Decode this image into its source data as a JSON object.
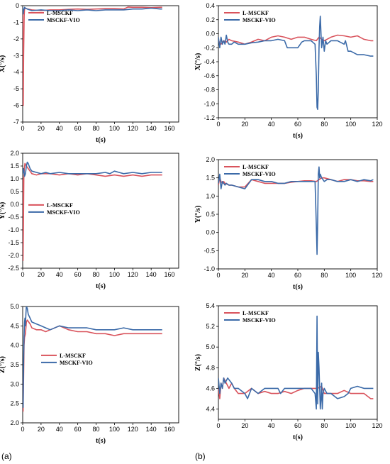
{
  "figure": {
    "label_a": "(a)",
    "label_b": "(b)"
  },
  "colors": {
    "l_msckf": "#d9535c",
    "msckf_vio": "#3b6aa8"
  },
  "chart_data": [
    {
      "type": "line",
      "panel": "a1",
      "xlabel": "t(s)",
      "ylabel": "X(°/s)",
      "xlim": [
        0,
        170
      ],
      "ylim": [
        -7,
        0
      ],
      "xticks": [
        0,
        20,
        40,
        60,
        80,
        100,
        120,
        140,
        160
      ],
      "yticks": [
        -7,
        -6,
        -5,
        -4,
        -3,
        -2,
        -1,
        0
      ],
      "legend": "top-left",
      "series": [
        {
          "name": "L-MSCKF",
          "color": "#d9535c",
          "x": [
            0,
            0.3,
            0.6,
            1,
            1.6,
            2,
            3,
            5,
            10,
            20,
            30,
            40,
            50,
            60,
            70,
            80,
            90,
            100,
            110,
            115,
            120,
            130,
            140,
            150,
            152
          ],
          "y": [
            -0.2,
            -4.0,
            -6.0,
            -3.0,
            -0.6,
            -0.2,
            -0.15,
            -0.2,
            -0.25,
            -0.3,
            -0.25,
            -0.25,
            -0.22,
            -0.2,
            -0.22,
            -0.2,
            -0.18,
            -0.18,
            -0.2,
            -0.08,
            -0.1,
            -0.1,
            -0.12,
            -0.1,
            -0.1
          ]
        },
        {
          "name": "MSCKF-VIO",
          "color": "#3b6aa8",
          "x": [
            0,
            0.5,
            1,
            2,
            3,
            5,
            10,
            20,
            30,
            40,
            50,
            60,
            70,
            80,
            90,
            100,
            110,
            120,
            130,
            140,
            150,
            152
          ],
          "y": [
            -0.1,
            -0.5,
            -0.3,
            -0.1,
            -0.15,
            -0.2,
            -0.3,
            -0.25,
            -0.3,
            -0.3,
            -0.25,
            -0.3,
            -0.25,
            -0.3,
            -0.25,
            -0.25,
            -0.25,
            -0.2,
            -0.2,
            -0.15,
            -0.2,
            -0.2
          ]
        }
      ]
    },
    {
      "type": "line",
      "panel": "a2",
      "xlabel": "t(s)",
      "ylabel": "Y(°/s)",
      "xlim": [
        0,
        170
      ],
      "ylim": [
        -2.5,
        2.0
      ],
      "xticks": [
        0,
        20,
        40,
        60,
        80,
        100,
        120,
        140,
        160
      ],
      "yticks": [
        -2.5,
        -2.0,
        -1.5,
        -1.0,
        -0.5,
        0.0,
        0.5,
        1.0,
        1.5,
        2.0
      ],
      "legend": "middle-left",
      "series": [
        {
          "name": "L-MSCKF",
          "color": "#d9535c",
          "x": [
            0,
            0.4,
            0.8,
            1.2,
            1.8,
            2.5,
            4,
            6,
            8,
            10,
            15,
            20,
            30,
            40,
            50,
            60,
            70,
            80,
            90,
            100,
            110,
            120,
            130,
            140,
            150,
            152
          ],
          "y": [
            1.0,
            -2.2,
            -1.0,
            1.0,
            1.4,
            1.6,
            1.5,
            1.4,
            1.3,
            1.2,
            1.15,
            1.2,
            1.2,
            1.15,
            1.2,
            1.15,
            1.2,
            1.15,
            1.1,
            1.15,
            1.1,
            1.15,
            1.1,
            1.15,
            1.15,
            1.15
          ]
        },
        {
          "name": "MSCKF-VIO",
          "color": "#3b6aa8",
          "x": [
            0,
            1,
            2,
            3,
            4,
            5,
            6,
            8,
            10,
            15,
            20,
            25,
            30,
            40,
            50,
            60,
            70,
            80,
            90,
            95,
            100,
            105,
            110,
            120,
            130,
            140,
            150,
            152
          ],
          "y": [
            1.2,
            1.4,
            1.1,
            1.2,
            1.5,
            1.65,
            1.6,
            1.4,
            1.3,
            1.25,
            1.2,
            1.25,
            1.2,
            1.25,
            1.2,
            1.2,
            1.2,
            1.2,
            1.25,
            1.2,
            1.3,
            1.25,
            1.2,
            1.25,
            1.2,
            1.25,
            1.25,
            1.25
          ]
        }
      ]
    },
    {
      "type": "line",
      "panel": "a3",
      "xlabel": "t(s)",
      "ylabel": "Z(°/s)",
      "xlim": [
        0,
        170
      ],
      "ylim": [
        2.0,
        5.0
      ],
      "xticks": [
        0,
        20,
        40,
        60,
        80,
        100,
        120,
        140,
        160
      ],
      "yticks": [
        2.0,
        2.5,
        3.0,
        3.5,
        4.0,
        4.5,
        5.0
      ],
      "legend": "middle-right",
      "series": [
        {
          "name": "L-MSCKF",
          "color": "#d9535c",
          "x": [
            0,
            0.5,
            1,
            1.5,
            2,
            3,
            4,
            5,
            8,
            10,
            15,
            20,
            25,
            30,
            40,
            50,
            60,
            70,
            80,
            90,
            100,
            110,
            120,
            130,
            140,
            150,
            152
          ],
          "y": [
            2.6,
            2.3,
            3.2,
            4.0,
            4.2,
            4.3,
            4.6,
            4.65,
            4.55,
            4.45,
            4.4,
            4.4,
            4.35,
            4.4,
            4.5,
            4.4,
            4.35,
            4.35,
            4.3,
            4.3,
            4.25,
            4.3,
            4.3,
            4.3,
            4.3,
            4.3,
            4.3
          ]
        },
        {
          "name": "MSCKF-VIO",
          "color": "#3b6aa8",
          "x": [
            0,
            0.5,
            1,
            1.5,
            2,
            2.5,
            3,
            3.5,
            4,
            5,
            6,
            8,
            10,
            15,
            20,
            25,
            30,
            40,
            50,
            60,
            70,
            80,
            90,
            100,
            110,
            120,
            130,
            140,
            150,
            152
          ],
          "y": [
            2.5,
            2.4,
            3.6,
            4.2,
            4.6,
            4.7,
            4.5,
            4.8,
            5.0,
            4.95,
            4.8,
            4.7,
            4.6,
            4.55,
            4.5,
            4.45,
            4.4,
            4.5,
            4.45,
            4.45,
            4.45,
            4.4,
            4.4,
            4.4,
            4.45,
            4.4,
            4.4,
            4.4,
            4.4,
            4.4
          ]
        }
      ]
    },
    {
      "type": "line",
      "panel": "b1",
      "xlabel": "t(s)",
      "ylabel": "X(°/s)",
      "xlim": [
        0,
        120
      ],
      "ylim": [
        -1.2,
        0.4
      ],
      "xticks": [
        0,
        20,
        40,
        60,
        80,
        100,
        120
      ],
      "yticks": [
        -1.2,
        -1.0,
        -0.8,
        -0.6,
        -0.4,
        -0.2,
        0.0,
        0.2,
        0.4
      ],
      "legend": "top-left",
      "series": [
        {
          "name": "L-MSCKF",
          "color": "#d9535c",
          "x": [
            0,
            2,
            4,
            6,
            8,
            10,
            15,
            20,
            25,
            30,
            35,
            40,
            45,
            50,
            55,
            60,
            65,
            70,
            74,
            76,
            78,
            80,
            85,
            90,
            95,
            100,
            105,
            110,
            115,
            117
          ],
          "y": [
            -0.1,
            -0.15,
            -0.1,
            -0.12,
            -0.08,
            -0.1,
            -0.12,
            -0.15,
            -0.12,
            -0.08,
            -0.1,
            -0.05,
            -0.03,
            -0.05,
            -0.08,
            -0.05,
            -0.05,
            -0.08,
            -0.1,
            -0.05,
            -0.08,
            -0.1,
            -0.05,
            -0.02,
            -0.03,
            -0.05,
            -0.03,
            -0.08,
            -0.1,
            -0.1
          ]
        },
        {
          "name": "MSCKF-VIO",
          "color": "#3b6aa8",
          "x": [
            0,
            1,
            2,
            3,
            4,
            5,
            6,
            7,
            8,
            10,
            12,
            15,
            20,
            25,
            30,
            35,
            40,
            45,
            50,
            52,
            55,
            60,
            63,
            65,
            70,
            73,
            74,
            74.5,
            75,
            75.5,
            76,
            76.5,
            77,
            77.5,
            78,
            79,
            80,
            81,
            82,
            85,
            90,
            95,
            96,
            98,
            100,
            105,
            110,
            115,
            117
          ],
          "y": [
            -0.05,
            -0.2,
            -0.05,
            -0.15,
            -0.1,
            -0.15,
            -0.02,
            -0.12,
            -0.15,
            -0.15,
            -0.12,
            -0.15,
            -0.15,
            -0.13,
            -0.12,
            -0.1,
            -0.1,
            -0.08,
            -0.1,
            -0.2,
            -0.2,
            -0.2,
            -0.12,
            -0.1,
            -0.1,
            -0.15,
            -0.6,
            -1.05,
            -1.08,
            -0.8,
            -0.2,
            0.1,
            0.25,
            0.0,
            -0.2,
            -0.05,
            -0.25,
            -0.1,
            -0.15,
            -0.1,
            -0.1,
            -0.15,
            -0.1,
            -0.25,
            -0.25,
            -0.3,
            -0.3,
            -0.32,
            -0.32
          ]
        }
      ]
    },
    {
      "type": "line",
      "panel": "b2",
      "xlabel": "t(s)",
      "ylabel": "Y(°/s)",
      "xlim": [
        0,
        120
      ],
      "ylim": [
        -1.0,
        2.0
      ],
      "xticks": [
        0,
        20,
        40,
        60,
        80,
        100,
        120
      ],
      "yticks": [
        -1.0,
        -0.5,
        0.0,
        0.5,
        1.0,
        1.5,
        2.0
      ],
      "legend": "top-left",
      "series": [
        {
          "name": "L-MSCKF",
          "color": "#d9535c",
          "x": [
            0,
            1,
            2,
            3,
            4,
            5,
            8,
            10,
            15,
            20,
            25,
            30,
            35,
            40,
            45,
            50,
            55,
            60,
            65,
            70,
            74,
            76,
            78,
            80,
            85,
            90,
            95,
            100,
            105,
            110,
            115,
            117
          ],
          "y": [
            1.3,
            1.5,
            1.4,
            1.35,
            1.4,
            1.35,
            1.3,
            1.3,
            1.25,
            1.25,
            1.45,
            1.4,
            1.35,
            1.35,
            1.35,
            1.35,
            1.38,
            1.4,
            1.42,
            1.42,
            1.4,
            1.45,
            1.5,
            1.5,
            1.45,
            1.4,
            1.45,
            1.45,
            1.42,
            1.42,
            1.4,
            1.4
          ]
        },
        {
          "name": "MSCKF-VIO",
          "color": "#3b6aa8",
          "x": [
            0,
            1,
            2,
            3,
            4,
            5,
            6,
            8,
            10,
            15,
            20,
            22,
            25,
            28,
            30,
            35,
            40,
            45,
            50,
            55,
            60,
            65,
            70,
            73,
            74,
            74.5,
            75,
            75.5,
            76,
            76.5,
            77,
            78,
            79,
            80,
            82,
            85,
            90,
            95,
            100,
            105,
            110,
            115,
            117
          ],
          "y": [
            1.35,
            1.6,
            1.2,
            1.4,
            1.35,
            1.3,
            1.35,
            1.3,
            1.3,
            1.25,
            1.2,
            1.3,
            1.45,
            1.45,
            1.45,
            1.4,
            1.4,
            1.35,
            1.35,
            1.4,
            1.4,
            1.4,
            1.4,
            1.4,
            0.2,
            -0.6,
            0.3,
            1.6,
            1.8,
            1.5,
            1.6,
            1.5,
            1.45,
            1.4,
            1.45,
            1.45,
            1.4,
            1.4,
            1.45,
            1.4,
            1.45,
            1.42,
            1.45
          ]
        }
      ]
    },
    {
      "type": "line",
      "panel": "b3",
      "xlabel": "t(s)",
      "ylabel": "Z(°/s)",
      "xlim": [
        0,
        120
      ],
      "ylim": [
        4.3,
        5.4
      ],
      "xticks": [
        0,
        20,
        40,
        60,
        80,
        100,
        120
      ],
      "yticks": [
        4.4,
        4.6,
        4.8,
        5.0,
        5.2,
        5.4
      ],
      "legend": "top-left",
      "series": [
        {
          "name": "L-MSCKF",
          "color": "#d9535c",
          "x": [
            0,
            1,
            2,
            3,
            4,
            6,
            8,
            10,
            12,
            15,
            20,
            25,
            30,
            35,
            40,
            45,
            50,
            55,
            60,
            65,
            70,
            75,
            78,
            80,
            85,
            90,
            95,
            100,
            105,
            110,
            115,
            117
          ],
          "y": [
            4.6,
            4.5,
            4.65,
            4.6,
            4.7,
            4.65,
            4.6,
            4.65,
            4.6,
            4.55,
            4.55,
            4.6,
            4.55,
            4.57,
            4.55,
            4.55,
            4.57,
            4.55,
            4.58,
            4.6,
            4.6,
            4.6,
            4.62,
            4.55,
            4.55,
            4.55,
            4.58,
            4.55,
            4.55,
            4.55,
            4.5,
            4.5
          ]
        },
        {
          "name": "MSCKF-VIO",
          "color": "#3b6aa8",
          "x": [
            0,
            1,
            2,
            3,
            4,
            5,
            7,
            10,
            12,
            15,
            20,
            22,
            25,
            30,
            35,
            40,
            45,
            47,
            50,
            55,
            60,
            65,
            70,
            73,
            74,
            74.5,
            75,
            75.5,
            76,
            76.5,
            77,
            77.5,
            78,
            78.5,
            79,
            80,
            82,
            85,
            90,
            95,
            98,
            100,
            105,
            110,
            115,
            117
          ],
          "y": [
            4.7,
            4.55,
            4.65,
            4.6,
            4.7,
            4.65,
            4.7,
            4.65,
            4.6,
            4.6,
            4.55,
            4.5,
            4.6,
            4.55,
            4.6,
            4.6,
            4.6,
            4.55,
            4.6,
            4.6,
            4.6,
            4.6,
            4.6,
            4.55,
            4.4,
            5.3,
            4.45,
            4.95,
            4.8,
            4.6,
            4.4,
            4.5,
            4.65,
            4.4,
            4.55,
            4.6,
            4.55,
            4.55,
            4.5,
            4.52,
            4.55,
            4.6,
            4.62,
            4.6,
            4.6,
            4.6
          ]
        }
      ]
    }
  ]
}
